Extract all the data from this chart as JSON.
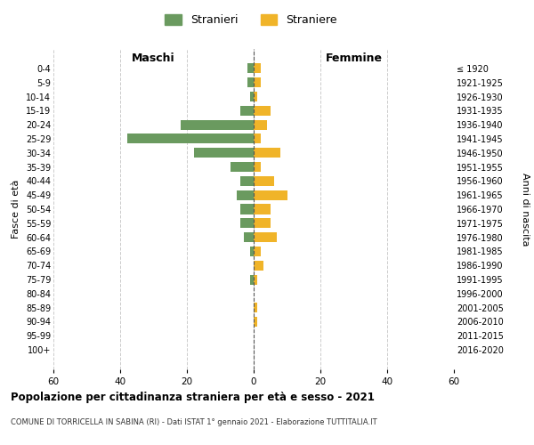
{
  "age_groups": [
    "0-4",
    "5-9",
    "10-14",
    "15-19",
    "20-24",
    "25-29",
    "30-34",
    "35-39",
    "40-44",
    "45-49",
    "50-54",
    "55-59",
    "60-64",
    "65-69",
    "70-74",
    "75-79",
    "80-84",
    "85-89",
    "90-94",
    "95-99",
    "100+"
  ],
  "birth_years": [
    "2016-2020",
    "2011-2015",
    "2006-2010",
    "2001-2005",
    "1996-2000",
    "1991-1995",
    "1986-1990",
    "1981-1985",
    "1976-1980",
    "1971-1975",
    "1966-1970",
    "1961-1965",
    "1956-1960",
    "1951-1955",
    "1946-1950",
    "1941-1945",
    "1936-1940",
    "1931-1935",
    "1926-1930",
    "1921-1925",
    "≤ 1920"
  ],
  "maschi": [
    2,
    2,
    1,
    4,
    22,
    38,
    18,
    7,
    4,
    5,
    4,
    4,
    3,
    1,
    0,
    1,
    0,
    0,
    0,
    0,
    0
  ],
  "femmine": [
    2,
    2,
    1,
    5,
    4,
    2,
    8,
    2,
    6,
    10,
    5,
    5,
    7,
    2,
    3,
    1,
    0,
    1,
    1,
    0,
    0
  ],
  "color_maschi": "#6a9a5f",
  "color_femmine": "#f0b429",
  "xlim": 60,
  "title": "Popolazione per cittadinanza straniera per età e sesso - 2021",
  "subtitle": "COMUNE DI TORRICELLA IN SABINA (RI) - Dati ISTAT 1° gennaio 2021 - Elaborazione TUTTITALIA.IT",
  "ylabel_left": "Fasce di età",
  "ylabel_right": "Anni di nascita",
  "header_maschi": "Maschi",
  "header_femmine": "Femmine",
  "legend_maschi": "Stranieri",
  "legend_femmine": "Straniere",
  "bg_color": "#ffffff",
  "grid_color": "#cccccc",
  "bar_height": 0.7
}
